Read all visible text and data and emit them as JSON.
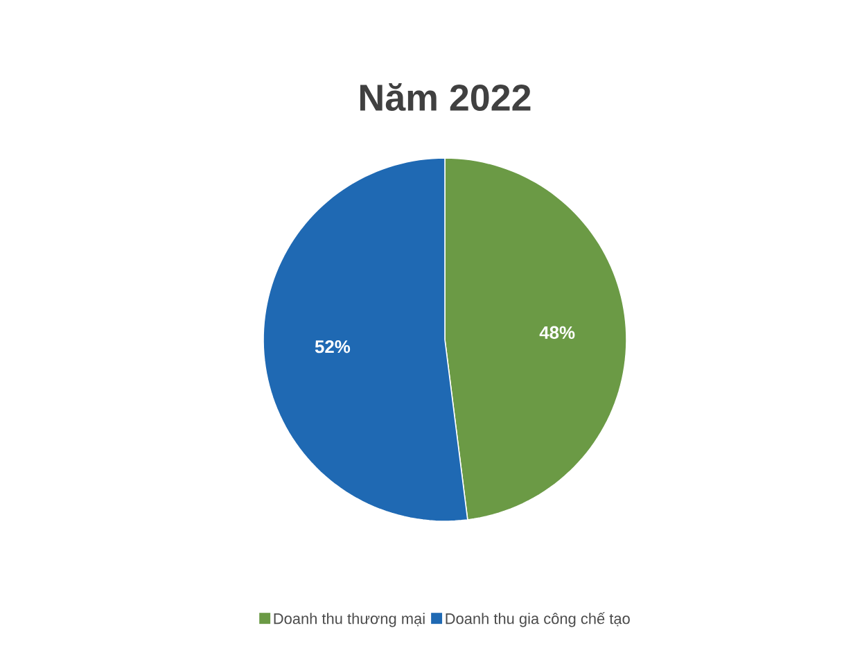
{
  "chart_data": {
    "type": "pie",
    "title": "Năm 2022",
    "categories": [
      "Doanh thu thương mại",
      "Doanh thu gia công chế tạo"
    ],
    "values": [
      48,
      52
    ],
    "colors": [
      "#6b9a45",
      "#1f69b3"
    ],
    "value_labels": [
      "48%",
      "52%"
    ],
    "legend": "bottom"
  }
}
